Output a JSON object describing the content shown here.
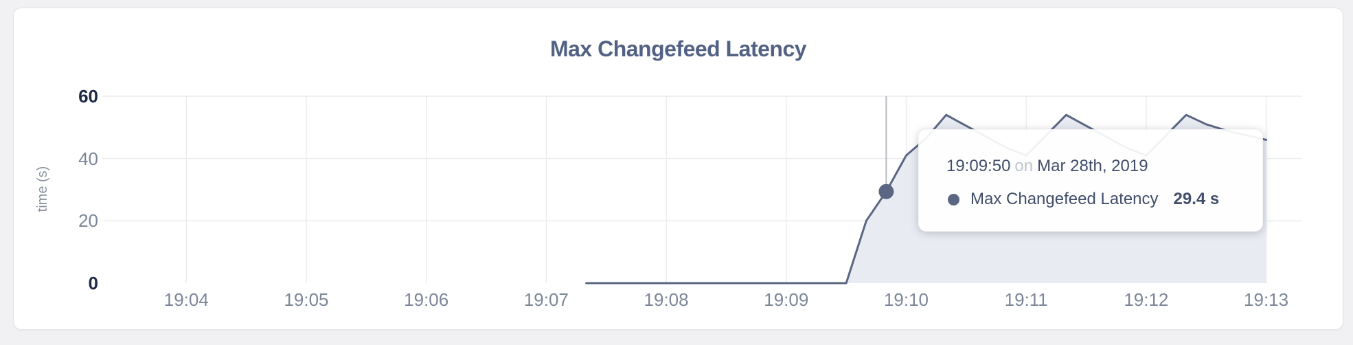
{
  "chart_data": {
    "type": "area",
    "title": "Max Changefeed Latency",
    "ylabel": "time (s)",
    "xlabel": "",
    "ylim": [
      0,
      60
    ],
    "y_ticks": [
      0,
      20,
      40,
      60
    ],
    "y_tick_emphasis": [
      0,
      60
    ],
    "x_domain": [
      "19:03:18",
      "19:13:18"
    ],
    "x_ticks": [
      "19:04",
      "19:05",
      "19:06",
      "19:07",
      "19:08",
      "19:09",
      "19:10",
      "19:11",
      "19:12",
      "19:13"
    ],
    "grid": true,
    "legend": "none",
    "series": [
      {
        "name": "Max Changefeed Latency",
        "unit": "s",
        "color": "#5a6682",
        "fill": "#e9ebf2",
        "points": [
          [
            "19:07:20",
            0
          ],
          [
            "19:07:30",
            0
          ],
          [
            "19:07:40",
            0
          ],
          [
            "19:07:50",
            0
          ],
          [
            "19:08:00",
            0
          ],
          [
            "19:08:10",
            0
          ],
          [
            "19:08:20",
            0
          ],
          [
            "19:08:30",
            0
          ],
          [
            "19:08:40",
            0
          ],
          [
            "19:08:50",
            0
          ],
          [
            "19:09:00",
            0
          ],
          [
            "19:09:10",
            0
          ],
          [
            "19:09:20",
            0
          ],
          [
            "19:09:30",
            0
          ],
          [
            "19:09:40",
            20
          ],
          [
            "19:09:50",
            29.4
          ],
          [
            "19:10:00",
            41
          ],
          [
            "19:10:10",
            46.5
          ],
          [
            "19:10:20",
            54
          ],
          [
            "19:10:30",
            50.5
          ],
          [
            "19:10:40",
            47
          ],
          [
            "19:10:50",
            43.5
          ],
          [
            "19:11:00",
            41
          ],
          [
            "19:11:10",
            47.5
          ],
          [
            "19:11:20",
            54
          ],
          [
            "19:11:30",
            50.5
          ],
          [
            "19:11:40",
            47
          ],
          [
            "19:11:50",
            43.5
          ],
          [
            "19:12:00",
            41
          ],
          [
            "19:12:10",
            47.5
          ],
          [
            "19:12:20",
            54
          ],
          [
            "19:12:30",
            51
          ],
          [
            "19:12:40",
            49
          ],
          [
            "19:12:50",
            47.5
          ],
          [
            "19:13:00",
            46
          ]
        ]
      }
    ],
    "hover": {
      "time": "19:09:50",
      "value": 29.4
    }
  },
  "tooltip": {
    "time": "19:09:50",
    "connector": "on",
    "date": "Mar 28th, 2019",
    "series_label": "Max Changefeed Latency",
    "value_text": "29.4 s"
  },
  "colors": {
    "page_bg": "#f1f1f4",
    "card_bg": "#ffffff",
    "card_border": "#e4e5e8",
    "title": "#526184",
    "axis_text": "#7d8698",
    "axis_strong": "#1e2945",
    "axis_unit": "#8a909c",
    "grid": "#ebecee",
    "crosshair": "#b8bbc2",
    "series": "#5a6682",
    "series_fill": "#e9ebf2",
    "tooltip_bg": "rgba(255,255,255,0.92)",
    "tooltip_text": "#414d69",
    "tooltip_muted": "#c0c5cd"
  }
}
